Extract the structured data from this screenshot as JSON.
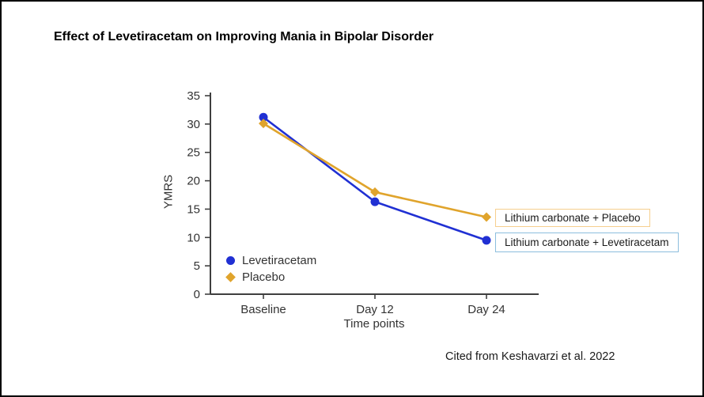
{
  "title": "Effect of Levetiracetam on Improving Mania in Bipolar Disorder",
  "citation": "Cited from Keshavarzi et al. 2022",
  "annotations": [
    {
      "label": "Lithium carbonate + Placebo",
      "border_color": "#F6CF8E"
    },
    {
      "label": "Lithium carbonate + Levetiracetam",
      "border_color": "#8CBEDD"
    }
  ],
  "chart_data": {
    "type": "line",
    "categories": [
      "Baseline",
      "Day 12",
      "Day 24"
    ],
    "series": [
      {
        "name": "Levetiracetam",
        "values": [
          31.2,
          16.3,
          9.5
        ],
        "color": "#2030D3",
        "marker": "circle"
      },
      {
        "name": "Placebo",
        "values": [
          30.1,
          18.0,
          13.6
        ],
        "color": "#E0A42C",
        "marker": "diamond"
      }
    ],
    "xlabel": "Time points",
    "ylabel": "YMRS",
    "ylim": [
      0,
      35
    ],
    "ytick_step": 5,
    "grid": false,
    "legend_position": "inside lower-left",
    "axis_color": "#3F3F3F",
    "tick_label_color": "#333333"
  }
}
